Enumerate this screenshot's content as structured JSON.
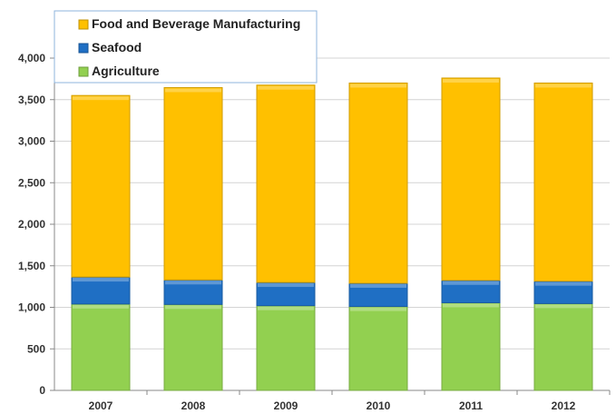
{
  "chart_data": {
    "type": "bar",
    "stacked": true,
    "categories": [
      "2007",
      "2008",
      "2009",
      "2010",
      "2011",
      "2012"
    ],
    "series": [
      {
        "name": "Agriculture",
        "color": "#92D050",
        "values": [
          1040,
          1035,
          1020,
          1010,
          1055,
          1045
        ]
      },
      {
        "name": "Seafood",
        "color": "#1F6FC4",
        "values": [
          325,
          295,
          280,
          280,
          270,
          270
        ]
      },
      {
        "name": "Food and Beverage Manufacturing",
        "color": "#FFC000",
        "values": [
          2185,
          2315,
          2375,
          2410,
          2435,
          2385
        ]
      }
    ],
    "legend_order": [
      "Food and Beverage Manufacturing",
      "Seafood",
      "Agriculture"
    ],
    "y_ticks": [
      "0",
      "500",
      "1,000",
      "1,500",
      "2,000",
      "2,500",
      "3,000",
      "3,500",
      "4,000"
    ],
    "ylim": [
      0,
      4000
    ],
    "grid": true,
    "legend_position": "top-left"
  }
}
